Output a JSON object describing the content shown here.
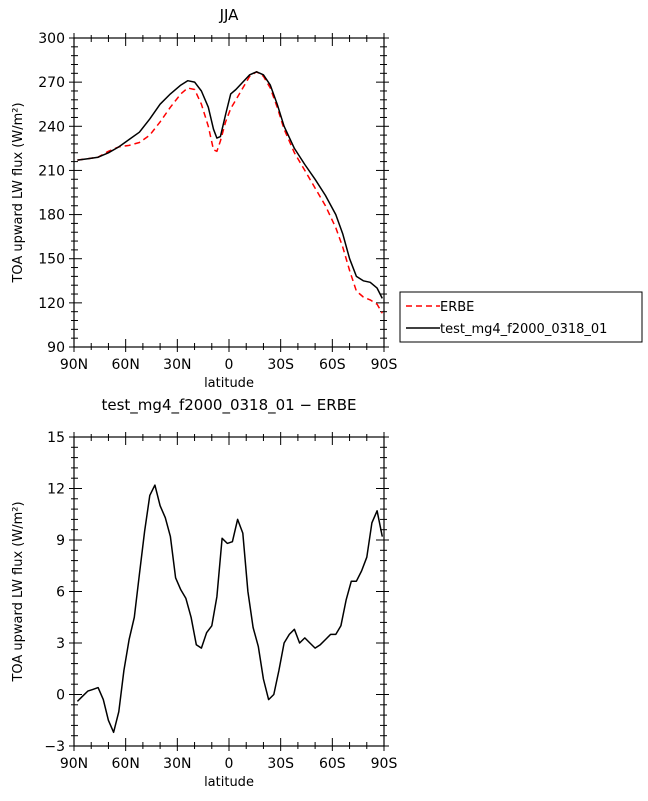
{
  "chart_data": [
    {
      "type": "line",
      "title": "JJA",
      "xlabel": "latitude",
      "ylabel": "TOA upward LW flux (W/m²)",
      "xlim": [
        90,
        -90
      ],
      "ylim": [
        90,
        300
      ],
      "x_ticks": [
        90,
        60,
        30,
        0,
        -30,
        -60,
        -90
      ],
      "x_tick_labels": [
        "90N",
        "60N",
        "30N",
        "0",
        "30S",
        "60S",
        "90S"
      ],
      "y_ticks": [
        90,
        120,
        150,
        180,
        210,
        240,
        270,
        300
      ],
      "y_tick_labels": [
        "90",
        "120",
        "150",
        "180",
        "210",
        "240",
        "270",
        "300"
      ],
      "legend": "right",
      "series": [
        {
          "name": "ERBE",
          "color": "#ff0000",
          "dash": "dashed",
          "x": [
            88,
            82,
            76,
            70,
            64,
            58,
            52,
            46,
            40,
            34,
            28,
            24,
            20,
            16,
            12,
            9,
            7,
            5,
            2,
            -1,
            -4,
            -8,
            -12,
            -16,
            -20,
            -24,
            -28,
            -32,
            -38,
            -44,
            -50,
            -56,
            -62,
            -66,
            -70,
            -74,
            -78,
            -82,
            -86,
            -89
          ],
          "values": [
            217,
            218,
            219,
            223,
            226,
            227,
            229,
            234,
            243,
            253,
            262,
            266,
            265,
            255,
            240,
            224,
            223,
            230,
            243,
            252,
            258,
            266,
            274,
            277,
            274,
            266,
            253,
            238,
            222,
            210,
            198,
            186,
            171,
            158,
            142,
            128,
            124,
            122,
            119,
            113
          ]
        },
        {
          "name": "test_mg4_f2000_0318_01",
          "color": "#000000",
          "dash": "solid",
          "x": [
            88,
            82,
            76,
            70,
            64,
            58,
            52,
            46,
            40,
            34,
            28,
            24,
            20,
            16,
            12,
            9,
            7,
            5,
            2,
            -1,
            -4,
            -8,
            -12,
            -16,
            -20,
            -24,
            -28,
            -32,
            -38,
            -44,
            -50,
            -56,
            -62,
            -66,
            -70,
            -74,
            -78,
            -82,
            -86,
            -89
          ],
          "values": [
            217,
            218,
            219,
            222,
            226,
            231,
            236,
            245,
            255,
            262,
            268,
            271,
            270,
            264,
            253,
            238,
            232,
            233,
            248,
            262,
            265,
            270,
            275,
            277,
            275,
            268,
            255,
            240,
            225,
            214,
            204,
            193,
            180,
            167,
            150,
            138,
            135,
            134,
            130,
            123
          ]
        }
      ]
    },
    {
      "type": "line",
      "title": "test_mg4_f2000_0318_01 − ERBE",
      "xlabel": "latitude",
      "ylabel": "TOA upward LW flux (W/m²)",
      "xlim": [
        90,
        -90
      ],
      "ylim": [
        -3,
        15
      ],
      "x_ticks": [
        90,
        60,
        30,
        0,
        -30,
        -60,
        -90
      ],
      "x_tick_labels": [
        "90N",
        "60N",
        "30N",
        "0",
        "30S",
        "60S",
        "90S"
      ],
      "y_ticks": [
        -3,
        0,
        3,
        6,
        9,
        12,
        15
      ],
      "y_tick_labels": [
        "−3",
        "0",
        "3",
        "6",
        "9",
        "12",
        "15"
      ],
      "series": [
        {
          "color": "#000000",
          "dash": "solid",
          "x": [
            88,
            85,
            82,
            79,
            76,
            73,
            70,
            67,
            64,
            61,
            58,
            55,
            52,
            49,
            46,
            43,
            40,
            37,
            34,
            31,
            28,
            25,
            22,
            19,
            16,
            13,
            10,
            7,
            4,
            1,
            -2,
            -5,
            -8,
            -11,
            -14,
            -17,
            -20,
            -23,
            -26,
            -29,
            -32,
            -35,
            -38,
            -41,
            -44,
            -47,
            -50,
            -53,
            -56,
            -59,
            -62,
            -65,
            -68,
            -71,
            -74,
            -77,
            -80,
            -83,
            -86,
            -89
          ],
          "values": [
            -0.4,
            -0.1,
            0.2,
            0.3,
            0.4,
            -0.3,
            -1.5,
            -2.2,
            -1.0,
            1.4,
            3.2,
            4.5,
            7.0,
            9.5,
            11.6,
            12.2,
            11.0,
            10.3,
            9.2,
            6.8,
            6.1,
            5.6,
            4.5,
            2.9,
            2.7,
            3.6,
            4.0,
            5.7,
            9.1,
            8.8,
            8.9,
            10.2,
            9.4,
            6.0,
            3.9,
            2.8,
            0.9,
            -0.3,
            0.0,
            1.4,
            3.0,
            3.5,
            3.8,
            3.0,
            3.3,
            3.0,
            2.7,
            2.9,
            3.2,
            3.5,
            3.5,
            4.0,
            5.5,
            6.6,
            6.6,
            7.2,
            8.0,
            10.0,
            10.7,
            9.2
          ]
        }
      ]
    }
  ]
}
